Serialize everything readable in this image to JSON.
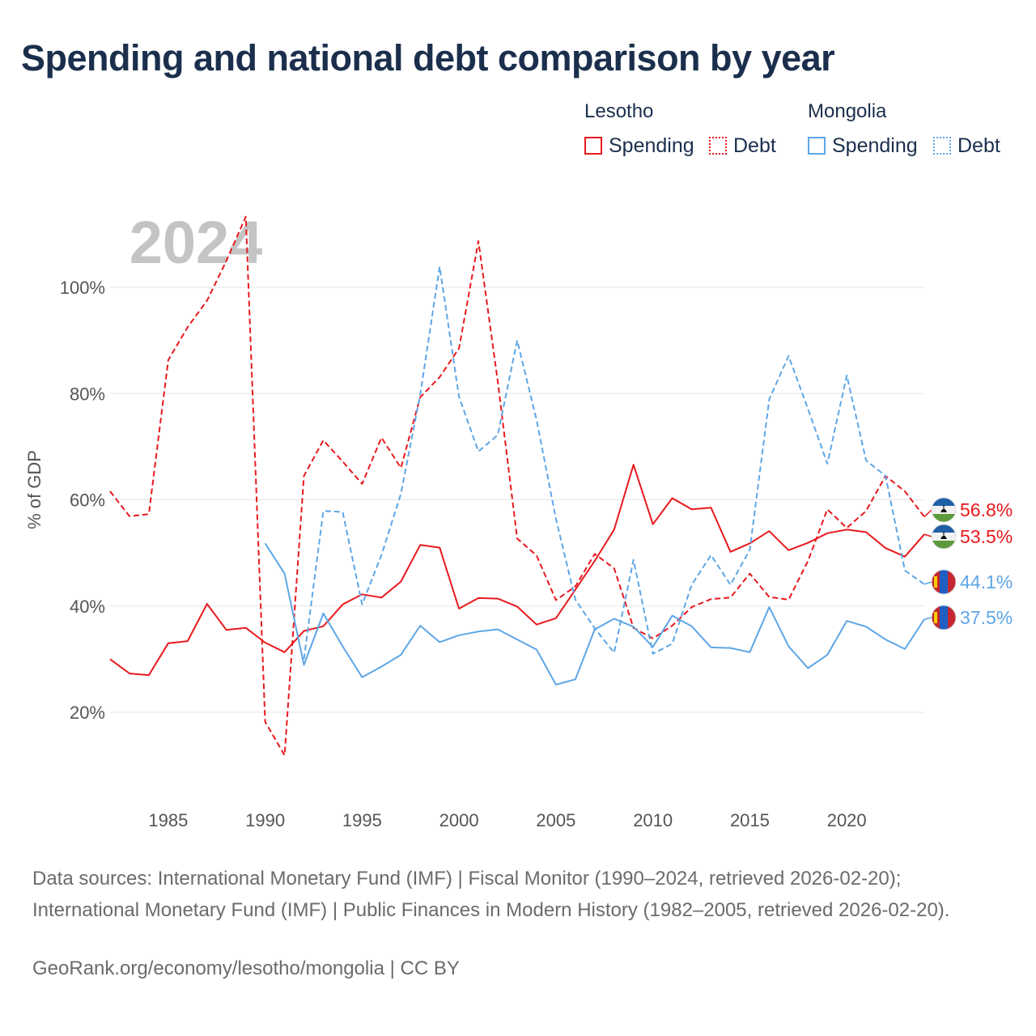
{
  "title": "Spending and national debt comparison by year",
  "legend": {
    "groups": [
      {
        "name": "Lesotho",
        "color": "#e8191d",
        "items": [
          {
            "label": "Spending",
            "style": "solid"
          },
          {
            "label": "Debt",
            "style": "dotted"
          }
        ]
      },
      {
        "name": "Mongolia",
        "color": "#5ea6e6",
        "items": [
          {
            "label": "Spending",
            "style": "solid"
          },
          {
            "label": "Debt",
            "style": "dotted"
          }
        ]
      }
    ]
  },
  "sources": "Data sources: International Monetary Fund (IMF) | Fiscal Monitor (1990–2024, retrieved 2026-02-20); International Monetary Fund (IMF) | Public Finances in Modern History (1982–2005, retrieved 2026-02-20).",
  "credit": "GeoRank.org/economy/lesotho/mongolia | CC BY",
  "chart_data": {
    "type": "line",
    "year_label": "2024",
    "ylabel": "% of GDP",
    "xlim": [
      1982,
      2024
    ],
    "ylim": [
      10,
      115
    ],
    "x_ticks": [
      1985,
      1990,
      1995,
      2000,
      2005,
      2010,
      2015,
      2020
    ],
    "y_ticks": [
      20,
      40,
      60,
      80,
      100
    ],
    "y_tick_labels": [
      "20%",
      "40%",
      "60%",
      "80%",
      "100%"
    ],
    "grid": true,
    "series": [
      {
        "name": "Lesotho Spending",
        "country": "Lesotho",
        "measure": "Spending",
        "color": "#e8191d",
        "dash": "solid",
        "end_label": "53.5%",
        "x": [
          1982,
          1983,
          1984,
          1985,
          1986,
          1987,
          1988,
          1989,
          1990,
          1991,
          1992,
          1993,
          1994,
          1995,
          1996,
          1997,
          1998,
          1999,
          2000,
          2001,
          2002,
          2003,
          2004,
          2005,
          2006,
          2007,
          2008,
          2009,
          2010,
          2011,
          2012,
          2013,
          2014,
          2015,
          2016,
          2017,
          2018,
          2019,
          2020,
          2021,
          2022,
          2023,
          2024
        ],
        "values": [
          30,
          27.3,
          27,
          33,
          33.4,
          40.4,
          35.5,
          35.9,
          33.1,
          31.3,
          35.3,
          36.2,
          40.3,
          42.2,
          41.6,
          44.6,
          51.5,
          51,
          39.5,
          41.5,
          41.4,
          39.9,
          36.5,
          37.7,
          43.1,
          48.5,
          54.4,
          66.6,
          55.4,
          60.3,
          58.2,
          58.5,
          50.2,
          51.8,
          54.1,
          50.5,
          51.9,
          53.7,
          54.4,
          53.9,
          50.9,
          49.3,
          53.5
        ]
      },
      {
        "name": "Lesotho Debt",
        "country": "Lesotho",
        "measure": "Debt",
        "color": "#e8191d",
        "dash": "dashed",
        "end_label": "56.8%",
        "x": [
          1982,
          1983,
          1984,
          1985,
          1986,
          1987,
          1988,
          1989,
          1990,
          1991,
          1992,
          1993,
          1994,
          1995,
          1996,
          1997,
          1998,
          1999,
          2000,
          2001,
          2002,
          2003,
          2004,
          2005,
          2006,
          2007,
          2008,
          2009,
          2010,
          2011,
          2012,
          2013,
          2014,
          2015,
          2016,
          2017,
          2018,
          2019,
          2020,
          2021,
          2022,
          2023,
          2024
        ],
        "values": [
          61.6,
          56.9,
          57.3,
          86.3,
          92.5,
          97.5,
          105,
          113.3,
          18.2,
          11.9,
          64.5,
          71.2,
          67.2,
          63,
          71.7,
          66,
          79.3,
          83.1,
          88.5,
          108.7,
          82.3,
          52.7,
          49.5,
          41.1,
          43.7,
          49.8,
          47.1,
          35.9,
          33.9,
          36.3,
          39.8,
          41.3,
          41.6,
          46.1,
          41.7,
          41.2,
          48.5,
          58.2,
          54.7,
          57.9,
          64.5,
          61.6,
          56.8
        ]
      },
      {
        "name": "Mongolia Spending",
        "country": "Mongolia",
        "measure": "Spending",
        "color": "#5ea6e6",
        "dash": "solid",
        "end_label": "37.5%",
        "x": [
          1990,
          1991,
          1992,
          1993,
          1994,
          1995,
          1996,
          1997,
          1998,
          1999,
          2000,
          2001,
          2002,
          2003,
          2004,
          2005,
          2006,
          2007,
          2008,
          2009,
          2010,
          2011,
          2012,
          2013,
          2014,
          2015,
          2016,
          2017,
          2018,
          2019,
          2020,
          2021,
          2022,
          2023,
          2024
        ],
        "values": [
          51.8,
          46.1,
          28.9,
          38.6,
          32.4,
          26.6,
          28.6,
          30.8,
          36.3,
          33.2,
          34.5,
          35.2,
          35.6,
          33.7,
          31.8,
          25.2,
          26.2,
          35.6,
          37.6,
          36.1,
          32.3,
          38.2,
          36.2,
          32.2,
          32.1,
          31.3,
          39.8,
          32.4,
          28.3,
          30.8,
          37.2,
          36.1,
          33.7,
          31.9,
          37.5
        ]
      },
      {
        "name": "Mongolia Debt",
        "country": "Mongolia",
        "measure": "Debt",
        "color": "#5ea6e6",
        "dash": "dashed",
        "end_label": "44.1%",
        "x": [
          1992,
          1993,
          1994,
          1995,
          1996,
          1997,
          1998,
          1999,
          2000,
          2001,
          2002,
          2003,
          2004,
          2005,
          2006,
          2007,
          2008,
          2009,
          2010,
          2011,
          2012,
          2013,
          2014,
          2015,
          2016,
          2017,
          2018,
          2019,
          2020,
          2021,
          2022,
          2023,
          2024
        ],
        "values": [
          30,
          57.9,
          57.7,
          40.3,
          49.6,
          61.1,
          79.8,
          103.9,
          79.4,
          69.1,
          72.2,
          90,
          75,
          56.4,
          41.2,
          35.8,
          31.2,
          48.7,
          31,
          32.9,
          44,
          49.6,
          44,
          50.6,
          78.9,
          87.1,
          77.1,
          66.8,
          83.4,
          67.4,
          64.5,
          46.7,
          44.1
        ]
      }
    ]
  }
}
